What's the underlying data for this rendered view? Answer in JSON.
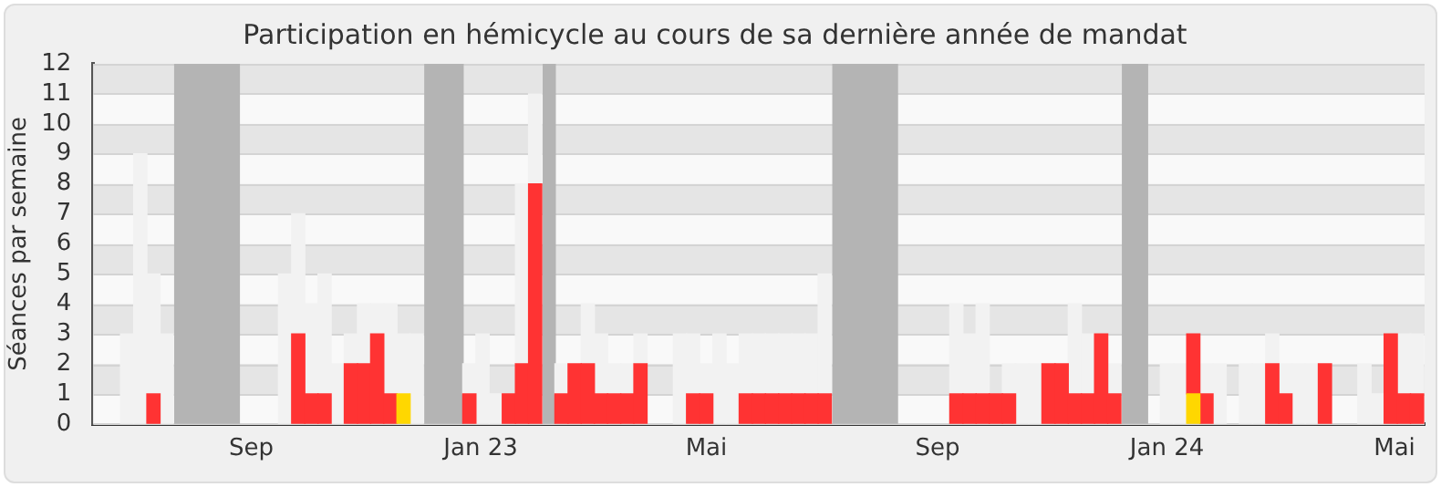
{
  "chart_data": {
    "type": "bar",
    "title": "Participation en hémicycle au cours de sa dernière année de mandat",
    "ylabel": "Séances par semaine",
    "x": [
      "2022-06-27",
      "2022-07-04",
      "2022-07-11",
      "2022-07-18",
      "2022-07-25",
      "2022-08-01",
      "2022-08-08",
      "2022-08-15",
      "2022-08-22",
      "2022-08-29",
      "2022-09-05",
      "2022-09-12",
      "2022-09-19",
      "2022-09-26",
      "2022-10-03",
      "2022-10-10",
      "2022-10-17",
      "2022-10-24",
      "2022-10-31",
      "2022-11-07",
      "2022-11-14",
      "2022-11-21",
      "2022-11-28",
      "2022-12-05",
      "2022-12-12",
      "2022-12-19",
      "2022-12-26",
      "2023-01-02",
      "2023-01-09",
      "2023-01-16",
      "2023-01-23",
      "2023-01-30",
      "2023-02-06",
      "2023-02-13",
      "2023-02-20",
      "2023-02-27",
      "2023-03-06",
      "2023-03-13",
      "2023-03-20",
      "2023-03-27",
      "2023-04-03",
      "2023-04-10",
      "2023-04-17",
      "2023-04-24",
      "2023-05-01",
      "2023-05-08",
      "2023-05-15",
      "2023-05-22",
      "2023-05-29",
      "2023-06-05",
      "2023-06-12",
      "2023-06-19",
      "2023-06-26",
      "2023-07-03",
      "2023-07-10",
      "2023-07-17",
      "2023-07-24",
      "2023-07-31",
      "2023-08-07",
      "2023-08-14",
      "2023-08-21",
      "2023-08-28",
      "2023-09-04",
      "2023-09-11",
      "2023-09-18",
      "2023-09-25",
      "2023-10-02",
      "2023-10-09",
      "2023-10-16",
      "2023-10-23",
      "2023-10-30",
      "2023-11-06",
      "2023-11-13",
      "2023-11-20",
      "2023-11-27",
      "2023-12-04",
      "2023-12-11",
      "2023-12-18",
      "2023-12-25",
      "2024-01-01",
      "2024-01-08",
      "2024-01-15",
      "2024-01-22",
      "2024-01-29",
      "2024-02-05",
      "2024-02-12",
      "2024-02-19",
      "2024-02-26",
      "2024-03-04",
      "2024-03-11",
      "2024-03-18",
      "2024-03-25",
      "2024-04-01",
      "2024-04-08",
      "2024-04-15",
      "2024-04-22",
      "2024-04-29",
      "2024-05-06",
      "2024-05-13"
    ],
    "xlim": [
      "2022-06-09",
      "2024-05-17"
    ],
    "xticks": [
      {
        "value": "2022-09-01",
        "label": "Sep"
      },
      {
        "value": "2023-01-01",
        "label": "Jan 23"
      },
      {
        "value": "2023-05-01",
        "label": "Mai"
      },
      {
        "value": "2023-09-01",
        "label": "Sep"
      },
      {
        "value": "2024-01-01",
        "label": "Jan 24"
      },
      {
        "value": "2024-05-01",
        "label": "Mai"
      }
    ],
    "stacked": true,
    "ylim": [
      0,
      12
    ],
    "yticks": [
      0,
      1,
      2,
      3,
      4,
      5,
      6,
      7,
      8,
      9,
      10,
      11,
      12
    ],
    "grid": "y",
    "legend": false,
    "bands": [
      {
        "axis": "x",
        "from": "2022-07-22",
        "to": "2022-08-26",
        "color": "#b4b4b4"
      },
      {
        "axis": "x",
        "from": "2022-12-02",
        "to": "2022-12-23",
        "color": "#b4b4b4"
      },
      {
        "axis": "x",
        "from": "2023-02-03",
        "to": "2023-02-10",
        "color": "#b4b4b4"
      },
      {
        "axis": "x",
        "from": "2023-07-07",
        "to": "2023-08-11",
        "color": "#b4b4b4"
      },
      {
        "axis": "x",
        "from": "2023-12-08",
        "to": "2023-12-22",
        "color": "#b4b4b4"
      }
    ],
    "series": [
      {
        "color": "#ffd700",
        "values": [
          null,
          null,
          null,
          null,
          null,
          null,
          null,
          null,
          null,
          null,
          null,
          null,
          null,
          null,
          null,
          null,
          null,
          null,
          null,
          null,
          null,
          1,
          null,
          null,
          null,
          null,
          null,
          null,
          null,
          null,
          null,
          null,
          null,
          null,
          null,
          null,
          null,
          null,
          null,
          null,
          null,
          null,
          null,
          null,
          null,
          null,
          null,
          null,
          null,
          null,
          null,
          null,
          null,
          null,
          null,
          null,
          null,
          null,
          null,
          null,
          null,
          null,
          null,
          null,
          null,
          null,
          null,
          null,
          null,
          null,
          null,
          null,
          null,
          null,
          null,
          null,
          null,
          null,
          null,
          null,
          null,
          1,
          null,
          null,
          null,
          null,
          null,
          null,
          null,
          null,
          null,
          null,
          null,
          null,
          null,
          null,
          null,
          null,
          null
        ]
      },
      {
        "color": "#ff3333",
        "values": [
          null,
          null,
          1,
          null,
          null,
          null,
          null,
          null,
          null,
          null,
          null,
          null,
          null,
          3,
          1,
          1,
          null,
          2,
          2,
          3,
          1,
          null,
          null,
          null,
          null,
          null,
          1,
          null,
          null,
          1,
          2,
          8,
          null,
          1,
          2,
          2,
          1,
          1,
          1,
          2,
          null,
          null,
          null,
          1,
          1,
          null,
          null,
          1,
          1,
          1,
          1,
          1,
          1,
          1,
          null,
          null,
          null,
          null,
          null,
          null,
          null,
          null,
          null,
          1,
          1,
          1,
          1,
          1,
          null,
          null,
          2,
          2,
          1,
          1,
          3,
          1,
          null,
          null,
          null,
          null,
          null,
          2,
          1,
          null,
          null,
          null,
          null,
          2,
          1,
          null,
          null,
          2,
          null,
          null,
          null,
          null,
          3,
          1,
          1
        ]
      },
      {
        "color": "#f2f2f2",
        "values": [
          3,
          9,
          4,
          3,
          null,
          null,
          null,
          null,
          null,
          null,
          null,
          null,
          5,
          4,
          3,
          4,
          2,
          1,
          2,
          1,
          3,
          2,
          3,
          null,
          null,
          null,
          1,
          3,
          1,
          null,
          6,
          3,
          null,
          1,
          null,
          2,
          2,
          1,
          1,
          1,
          null,
          null,
          3,
          2,
          1,
          3,
          2,
          2,
          2,
          2,
          2,
          2,
          2,
          4,
          null,
          null,
          null,
          null,
          null,
          null,
          null,
          null,
          null,
          3,
          2,
          3,
          null,
          1,
          2,
          2,
          null,
          null,
          3,
          2,
          null,
          1,
          null,
          null,
          null,
          2,
          2,
          null,
          1,
          2,
          null,
          2,
          2,
          1,
          1,
          2,
          2,
          null,
          null,
          null,
          2,
          1,
          null,
          2,
          2
        ]
      }
    ]
  }
}
